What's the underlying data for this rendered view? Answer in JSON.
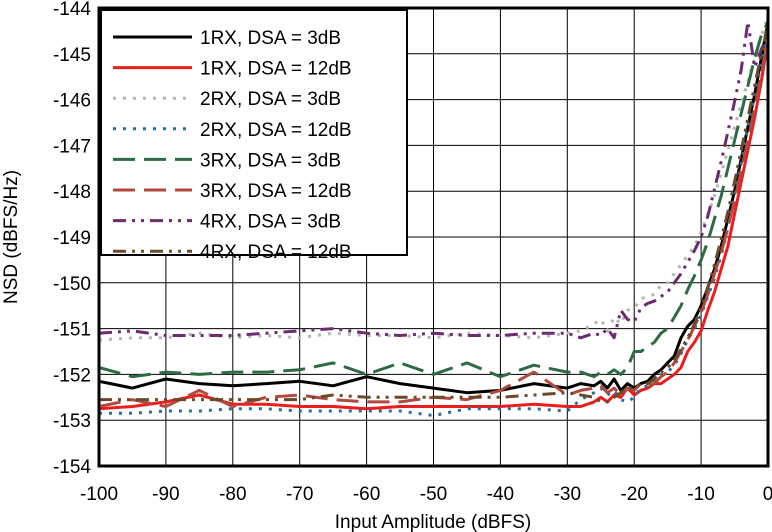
{
  "chart_data": {
    "type": "line",
    "xlabel": "Input Amplitude (dBFS)",
    "ylabel": "NSD (dBFS/Hz)",
    "xlim": [
      -100,
      0
    ],
    "ylim": [
      -154,
      -144
    ],
    "x_ticks": [
      "-100",
      "-90",
      "-80",
      "-70",
      "-60",
      "-50",
      "-40",
      "-30",
      "-20",
      "-10",
      "0"
    ],
    "y_ticks": [
      "-144",
      "-145",
      "-146",
      "-147",
      "-148",
      "-149",
      "-150",
      "-151",
      "-152",
      "-153",
      "-154"
    ],
    "grid": true,
    "legend_position": "top-left",
    "series": [
      {
        "name": "1RX, DSA = 3dB",
        "color": "#000000",
        "dash": "solid",
        "x": [
          -100,
          -95,
          -90,
          -85,
          -80,
          -75,
          -70,
          -65,
          -60,
          -55,
          -50,
          -45,
          -40,
          -35,
          -30,
          -28,
          -26,
          -25,
          -24,
          -23,
          -22,
          -21,
          -20,
          -19,
          -18,
          -17,
          -16,
          -15,
          -14,
          -13,
          -12,
          -11,
          -10,
          -9,
          -8,
          -7,
          -6,
          -5,
          -4,
          -3,
          -2,
          -1,
          0
        ],
        "values": [
          -152.15,
          -152.3,
          -152.1,
          -152.2,
          -152.25,
          -152.2,
          -152.15,
          -152.25,
          -152.05,
          -152.2,
          -152.3,
          -152.4,
          -152.35,
          -152.2,
          -152.3,
          -152.2,
          -152.25,
          -152.15,
          -152.3,
          -152.1,
          -152.35,
          -152.2,
          -152.3,
          -152.2,
          -152.15,
          -152.0,
          -151.9,
          -151.75,
          -151.6,
          -151.2,
          -150.95,
          -150.8,
          -150.5,
          -150.1,
          -149.7,
          -149.2,
          -148.6,
          -148.0,
          -147.3,
          -146.6,
          -145.9,
          -145.1,
          -144.3
        ]
      },
      {
        "name": "1RX, DSA = 12dB",
        "color": "#ee1c1c",
        "dash": "solid",
        "x": [
          -100,
          -95,
          -90,
          -85,
          -80,
          -75,
          -70,
          -65,
          -60,
          -55,
          -50,
          -45,
          -40,
          -35,
          -30,
          -28,
          -26,
          -25,
          -24,
          -23,
          -22,
          -21,
          -20,
          -19,
          -18,
          -17,
          -16,
          -15,
          -14,
          -13,
          -12,
          -11,
          -10,
          -9,
          -8,
          -7,
          -6,
          -5,
          -4,
          -3,
          -2,
          -1,
          0
        ],
        "values": [
          -152.75,
          -152.7,
          -152.6,
          -152.45,
          -152.65,
          -152.65,
          -152.7,
          -152.7,
          -152.75,
          -152.7,
          -152.7,
          -152.7,
          -152.7,
          -152.65,
          -152.7,
          -152.7,
          -152.6,
          -152.5,
          -152.6,
          -152.45,
          -152.5,
          -152.3,
          -152.45,
          -152.35,
          -152.3,
          -152.2,
          -152.2,
          -152.1,
          -152.0,
          -151.85,
          -151.5,
          -151.3,
          -151.05,
          -150.6,
          -150.2,
          -149.7,
          -149.2,
          -148.5,
          -147.8,
          -147.1,
          -146.4,
          -145.6,
          -144.7
        ]
      },
      {
        "name": "2RX, DSA = 3dB",
        "color": "#b5b5b5",
        "dash": "dot",
        "x": [
          -100,
          -95,
          -90,
          -85,
          -80,
          -75,
          -70,
          -65,
          -60,
          -55,
          -50,
          -45,
          -40,
          -35,
          -30,
          -28,
          -26,
          -25,
          -24,
          -23,
          -22,
          -21,
          -20,
          -19,
          -18,
          -17,
          -16,
          -15,
          -14,
          -13,
          -12,
          -11,
          -10,
          -9,
          -8,
          -7,
          -6,
          -5,
          -4,
          -3,
          -2,
          -1,
          0
        ],
        "values": [
          -151.25,
          -151.2,
          -151.2,
          -151.1,
          -151.2,
          -151.15,
          -151.2,
          -151.1,
          -151.15,
          -151.15,
          -151.2,
          -151.1,
          -151.15,
          -151.2,
          -151.1,
          -151.05,
          -150.9,
          -150.8,
          -151.05,
          -150.75,
          -150.9,
          -150.6,
          -150.55,
          -150.35,
          -150.3,
          -150.25,
          -150.05,
          -150.0,
          -149.8,
          -149.6,
          -149.4,
          -149.2,
          -148.9,
          -148.5,
          -148.1,
          -147.6,
          -147.1,
          -146.6,
          -146.1,
          -145.6,
          -145.1,
          -144.6,
          -144.2
        ]
      },
      {
        "name": "2RX, DSA = 12dB",
        "color": "#2a6e9b",
        "dash": "dot",
        "x": [
          -100,
          -95,
          -90,
          -85,
          -80,
          -75,
          -70,
          -65,
          -60,
          -55,
          -50,
          -45,
          -40,
          -35,
          -30,
          -28,
          -26,
          -25,
          -24,
          -23,
          -22,
          -21,
          -20,
          -19,
          -18,
          -17,
          -16,
          -15,
          -14,
          -13,
          -12,
          -11,
          -10,
          -9,
          -8,
          -7,
          -6,
          -5,
          -4,
          -3,
          -2,
          -1,
          0
        ],
        "values": [
          -152.85,
          -152.85,
          -152.8,
          -152.8,
          -152.75,
          -152.75,
          -152.8,
          -152.8,
          -152.8,
          -152.8,
          -152.9,
          -152.75,
          -152.75,
          -152.75,
          -152.8,
          -152.55,
          -152.4,
          -152.3,
          -152.45,
          -152.35,
          -152.55,
          -152.6,
          -152.5,
          -152.3,
          -152.25,
          -152.15,
          -152.0,
          -151.95,
          -151.8,
          -151.55,
          -151.25,
          -151.0,
          -150.7,
          -150.3,
          -149.9,
          -149.4,
          -148.8,
          -148.1,
          -147.4,
          -146.6,
          -145.9,
          -145.2,
          -144.5
        ]
      },
      {
        "name": "3RX, DSA = 3dB",
        "color": "#2e6b45",
        "dash": "longdash",
        "x": [
          -100,
          -95,
          -90,
          -85,
          -80,
          -75,
          -70,
          -65,
          -60,
          -55,
          -50,
          -45,
          -40,
          -35,
          -30,
          -28,
          -26,
          -25,
          -24,
          -23,
          -22,
          -21,
          -20,
          -19,
          -18,
          -17,
          -16,
          -15,
          -14,
          -13,
          -12,
          -11,
          -10,
          -9,
          -8,
          -7,
          -6,
          -5,
          -4,
          -3,
          -2,
          -1,
          0
        ],
        "values": [
          -151.85,
          -152.05,
          -151.95,
          -152.0,
          -151.95,
          -151.95,
          -151.9,
          -151.75,
          -152.0,
          -151.75,
          -152.0,
          -151.75,
          -152.05,
          -151.8,
          -151.95,
          -151.95,
          -152.05,
          -151.95,
          -152.0,
          -151.9,
          -152.0,
          -151.85,
          -151.5,
          -151.5,
          -151.4,
          -151.3,
          -151.1,
          -151.0,
          -150.75,
          -150.5,
          -150.15,
          -149.85,
          -149.5,
          -149.1,
          -148.6,
          -148.1,
          -147.5,
          -146.9,
          -146.3,
          -145.7,
          -145.1,
          -144.6,
          -144.3
        ]
      },
      {
        "name": "3RX, DSA = 12dB",
        "color": "#b04a3e",
        "dash": "longdash",
        "x": [
          -100,
          -95,
          -90,
          -85,
          -80,
          -75,
          -70,
          -65,
          -60,
          -55,
          -50,
          -45,
          -40,
          -35,
          -30,
          -28,
          -26,
          -25,
          -24,
          -23,
          -22,
          -21,
          -20,
          -19,
          -18,
          -17,
          -16,
          -15,
          -14,
          -13,
          -12,
          -11,
          -10,
          -9,
          -8,
          -7,
          -6,
          -5,
          -4,
          -3,
          -2,
          -1,
          0
        ],
        "values": [
          -152.7,
          -152.55,
          -152.7,
          -152.35,
          -152.7,
          -152.5,
          -152.45,
          -152.55,
          -152.6,
          -152.6,
          -152.5,
          -152.55,
          -152.35,
          -151.95,
          -152.45,
          -152.35,
          -152.3,
          -152.25,
          -152.4,
          -152.3,
          -152.45,
          -152.3,
          -152.35,
          -152.2,
          -152.25,
          -152.2,
          -152.05,
          -151.95,
          -151.75,
          -151.5,
          -151.25,
          -150.95,
          -150.65,
          -150.25,
          -149.8,
          -149.35,
          -148.8,
          -148.2,
          -147.55,
          -146.9,
          -146.2,
          -145.45,
          -144.7
        ]
      },
      {
        "name": "4RX, DSA = 3dB",
        "color": "#6b2d6f",
        "dash": "dashdotdot",
        "x": [
          -100,
          -95,
          -90,
          -85,
          -80,
          -75,
          -70,
          -65,
          -60,
          -55,
          -50,
          -45,
          -40,
          -35,
          -30,
          -28,
          -26,
          -25,
          -24,
          -23,
          -22,
          -21,
          -20,
          -19,
          -18,
          -17,
          -16,
          -15,
          -14,
          -13,
          -12,
          -11,
          -10,
          -9,
          -8,
          -7,
          -6,
          -5,
          -4,
          -3,
          -2,
          -1,
          0
        ],
        "values": [
          -151.1,
          -151.05,
          -151.15,
          -151.15,
          -151.15,
          -151.1,
          -151.05,
          -151.0,
          -151.1,
          -151.15,
          -151.1,
          -151.15,
          -151.15,
          -151.1,
          -151.1,
          -151.2,
          -151.1,
          -151.15,
          -151.0,
          -151.2,
          -150.6,
          -150.8,
          -150.85,
          -150.55,
          -150.45,
          -150.4,
          -150.3,
          -150.2,
          -150.0,
          -149.8,
          -149.55,
          -149.3,
          -149.0,
          -148.55,
          -147.95,
          -147.35,
          -146.7,
          -146.05,
          -145.35,
          -144.3,
          -145.3,
          -144.9,
          -144.6
        ]
      },
      {
        "name": "4RX, DSA = 12dB",
        "color": "#6b4a2a",
        "dash": "dashdotdot",
        "x": [
          -100,
          -95,
          -90,
          -85,
          -80,
          -75,
          -70,
          -65,
          -60,
          -55,
          -50,
          -45,
          -40,
          -35,
          -30,
          -28,
          -26,
          -25,
          -24,
          -23,
          -22,
          -21,
          -20,
          -19,
          -18,
          -17,
          -16,
          -15,
          -14,
          -13,
          -12,
          -11,
          -10,
          -9,
          -8,
          -7,
          -6,
          -5,
          -4,
          -3,
          -2,
          -1,
          0
        ],
        "values": [
          -152.55,
          -152.55,
          -152.55,
          -152.55,
          -152.55,
          -152.55,
          -152.55,
          -152.45,
          -152.5,
          -152.5,
          -152.5,
          -152.5,
          -152.5,
          -152.45,
          -152.4,
          -152.45,
          -152.5,
          -152.6,
          -152.6,
          -152.5,
          -152.4,
          -152.3,
          -152.3,
          -152.2,
          -152.2,
          -152.1,
          -151.95,
          -151.85,
          -151.7,
          -151.45,
          -151.2,
          -150.9,
          -150.55,
          -150.1,
          -149.6,
          -149.05,
          -148.45,
          -147.8,
          -147.1,
          -146.4,
          -145.7,
          -145.0,
          -144.4
        ]
      }
    ]
  }
}
